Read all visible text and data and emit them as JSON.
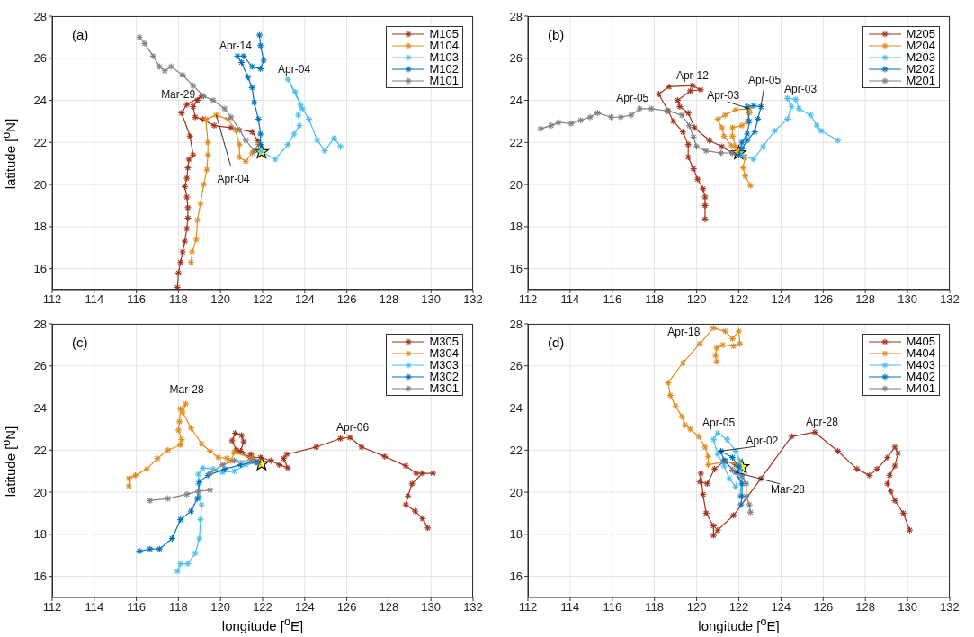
{
  "chart_data": [
    {
      "type": "line",
      "marker": "cross",
      "grid": true,
      "legend": "top right",
      "ylabel": "latitude [$^{o}$N]",
      "xlim": [
        112,
        132
      ],
      "ylim": [
        15,
        28
      ],
      "xticks": [
        112,
        114,
        116,
        118,
        120,
        122,
        124,
        126,
        128,
        130,
        132
      ],
      "yticks": [
        16,
        18,
        20,
        22,
        24,
        26,
        28
      ],
      "annotations": [
        "(a)",
        {
          "text": "Apr-14",
          "x": 120.8,
          "y": 26.1
        },
        {
          "text": "Apr-04",
          "x": 123.2,
          "y": 25.0
        },
        {
          "text": "Mar-29",
          "x": 119.1,
          "y": 24.2
        },
        {
          "text": "Apr-04",
          "x": 119.8,
          "y": 23.3
        }
      ],
      "series": [
        {
          "name": "M105",
          "color": "#a2331d",
          "x": [
            121.78,
            121.5,
            120.5,
            119.7,
            119.15,
            118.8,
            118.7,
            118.9,
            119.1,
            118.4,
            118.15,
            118.55,
            118.7,
            118.5,
            118.45,
            118.4,
            118.3,
            118.4,
            118.45,
            118.45,
            118.4,
            118.3,
            118.2,
            118.1,
            118.0,
            117.95
          ],
          "values": [
            22.07,
            22.5,
            22.7,
            22.8,
            23.1,
            23.2,
            23.7,
            24.0,
            24.2,
            23.8,
            23.4,
            22.3,
            21.4,
            21.2,
            20.8,
            20.3,
            19.9,
            19.4,
            18.9,
            18.4,
            17.9,
            17.3,
            16.8,
            16.3,
            15.8,
            15.1
          ]
        },
        {
          "name": "M104",
          "color": "#e08a1e",
          "x": [
            121.8,
            121.5,
            121.2,
            120.9,
            120.9,
            120.7,
            120.35,
            119.8,
            119.3,
            119.4,
            119.4,
            119.35,
            119.2,
            119.05,
            118.9,
            118.85,
            118.65,
            118.6
          ],
          "values": [
            21.9,
            21.5,
            21.1,
            21.3,
            21.9,
            22.6,
            23.1,
            23.3,
            23.1,
            22.0,
            21.4,
            20.7,
            20.0,
            19.1,
            18.3,
            17.4,
            16.8,
            16.3
          ]
        },
        {
          "name": "M103",
          "color": "#4dbeee",
          "x": [
            121.9,
            122.6,
            123.2,
            123.5,
            123.75,
            123.7,
            123.8,
            123.55,
            123.2,
            123.9,
            124.2,
            124.6,
            124.95,
            125.4,
            125.7
          ],
          "values": [
            21.6,
            21.2,
            21.9,
            22.4,
            22.8,
            23.3,
            23.8,
            24.4,
            25.0,
            23.6,
            23.1,
            22.1,
            21.6,
            22.2,
            21.8
          ]
        },
        {
          "name": "M102",
          "color": "#0072bd",
          "x": [
            121.9,
            121.9,
            121.8,
            121.6,
            121.5,
            121.3,
            121.0,
            120.8,
            121.1,
            121.5,
            121.9,
            122.05,
            121.9,
            121.85
          ],
          "values": [
            21.9,
            22.4,
            23.1,
            23.9,
            24.6,
            25.1,
            25.8,
            26.1,
            26.1,
            25.6,
            25.5,
            25.9,
            26.6,
            27.1
          ]
        },
        {
          "name": "M101",
          "color": "#7f7f7f",
          "x": [
            121.6,
            121.2,
            120.9,
            120.5,
            120.2,
            119.65,
            119.2,
            118.7,
            118.2,
            117.65,
            117.35,
            117.1,
            116.8,
            116.4,
            116.15
          ],
          "values": [
            21.6,
            22.1,
            22.6,
            23.2,
            23.6,
            24.0,
            24.2,
            24.7,
            25.2,
            25.6,
            25.4,
            25.6,
            26.1,
            26.7,
            27.0
          ]
        },
        {
          "type": "scatter",
          "marker": "star",
          "color": "#ffff00",
          "x": [
            121.95
          ],
          "values": [
            21.55
          ]
        }
      ]
    },
    {
      "type": "line",
      "marker": "cross",
      "grid": true,
      "legend": "top right",
      "xlim": [
        112,
        132
      ],
      "ylim": [
        15,
        28
      ],
      "xticks": [
        112,
        114,
        116,
        118,
        120,
        122,
        124,
        126,
        128,
        130,
        132
      ],
      "yticks": [
        16,
        18,
        20,
        22,
        24,
        26,
        28
      ],
      "annotations": [
        "(b)",
        {
          "text": "Apr-12",
          "x": 119.8,
          "y": 24.7
        },
        {
          "text": "Apr-05",
          "x": 117.3,
          "y": 23.6
        },
        {
          "text": "Apr-03",
          "x": 122.5,
          "y": 23.6
        },
        {
          "text": "Apr-05",
          "x": 123.05,
          "y": 23.7
        },
        {
          "text": "Apr-03",
          "x": 124.5,
          "y": 24.1
        }
      ],
      "series": [
        {
          "name": "M205",
          "color": "#a2331d",
          "x": [
            120.4,
            120.4,
            120.4,
            120.3,
            120.05,
            119.85,
            119.6,
            119.6,
            119.35,
            118.9,
            118.65,
            118.2,
            118.7,
            119.8,
            120.2,
            119.7,
            119.1,
            119.2,
            119.6,
            119.9,
            120.6,
            121.2,
            121.7
          ],
          "values": [
            18.35,
            19.0,
            19.4,
            19.8,
            20.25,
            20.75,
            21.3,
            21.9,
            22.5,
            23.0,
            23.5,
            24.3,
            24.65,
            24.7,
            24.5,
            24.45,
            24.0,
            23.7,
            23.4,
            22.7,
            22.1,
            21.8,
            21.5
          ]
        },
        {
          "name": "M204",
          "color": "#e08a1e",
          "x": [
            122.55,
            122.3,
            122.2,
            122.3,
            122.0,
            121.65,
            121.3,
            121.2,
            121.0,
            121.35,
            121.85,
            122.5,
            122.5,
            122.4,
            122.15,
            121.7,
            121.7,
            121.85
          ],
          "values": [
            19.95,
            20.4,
            20.8,
            21.3,
            21.5,
            21.85,
            22.3,
            22.7,
            23.1,
            23.3,
            23.55,
            23.6,
            23.4,
            23.0,
            22.8,
            22.7,
            22.3,
            21.8
          ]
        },
        {
          "name": "M203",
          "color": "#4dbeee",
          "x": [
            122.15,
            122.7,
            123.15,
            123.7,
            124.3,
            124.5,
            124.3,
            124.7,
            124.85,
            125.4,
            125.7,
            125.9,
            126.7
          ],
          "values": [
            21.4,
            21.2,
            21.8,
            22.55,
            23.1,
            23.7,
            24.1,
            24.05,
            23.6,
            23.3,
            22.8,
            22.55,
            22.1
          ]
        },
        {
          "name": "M202",
          "color": "#0072bd",
          "x": [
            122.0,
            122.15,
            122.4,
            122.5,
            122.4,
            122.7,
            123.05,
            122.9,
            122.75,
            122.4,
            122.15
          ],
          "values": [
            21.4,
            22.0,
            22.4,
            23.0,
            23.7,
            23.75,
            23.7,
            23.1,
            22.5,
            22.1,
            21.7
          ]
        },
        {
          "name": "M201",
          "color": "#7f7f7f",
          "x": [
            121.7,
            121.15,
            120.45,
            120.0,
            119.85,
            119.65,
            119.3,
            118.6,
            117.85,
            117.3,
            116.9,
            116.4,
            115.95,
            115.3,
            114.95,
            114.5,
            114.05,
            113.45,
            113.1,
            112.6
          ],
          "values": [
            21.5,
            21.5,
            21.6,
            21.8,
            22.25,
            22.8,
            23.3,
            23.5,
            23.6,
            23.6,
            23.3,
            23.2,
            23.2,
            23.4,
            23.2,
            23.05,
            22.9,
            22.95,
            22.8,
            22.65
          ]
        },
        {
          "type": "scatter",
          "marker": "star",
          "color": "#ffff00",
          "x": [
            122.0
          ],
          "values": [
            21.5
          ]
        }
      ]
    },
    {
      "type": "line",
      "marker": "cross",
      "grid": true,
      "legend": "top right",
      "xlabel": "longitude [$^{o}$E]",
      "ylabel": "latitude [$^{o}$N]",
      "xlim": [
        112,
        132
      ],
      "ylim": [
        15,
        28
      ],
      "xticks": [
        112,
        114,
        116,
        118,
        120,
        122,
        124,
        126,
        128,
        130,
        132
      ],
      "yticks": [
        16,
        18,
        20,
        22,
        24,
        26,
        28
      ],
      "annotations": [
        "(c)",
        {
          "text": "Mar-28",
          "x": 118.35,
          "y": 24.2
        },
        {
          "text": "Apr-06",
          "x": 126.15,
          "y": 22.6
        }
      ],
      "series": [
        {
          "name": "M305",
          "color": "#a2331d",
          "x": [
            121.8,
            121.45,
            120.95,
            121.1,
            121.0,
            120.7,
            120.55,
            120.75,
            121.4,
            121.9,
            122.4,
            122.8,
            123.2,
            123.0,
            123.15,
            124.55,
            125.7,
            126.15,
            126.7,
            127.8,
            128.8,
            129.3,
            130.1,
            129.6,
            129.1,
            128.9,
            128.8,
            129.25,
            129.6,
            129.85
          ],
          "values": [
            21.4,
            21.8,
            21.95,
            22.4,
            22.7,
            22.8,
            22.45,
            22.0,
            21.65,
            21.65,
            21.5,
            21.3,
            21.15,
            21.6,
            21.8,
            22.15,
            22.55,
            22.6,
            22.15,
            21.7,
            21.25,
            20.9,
            20.9,
            20.9,
            20.4,
            19.8,
            19.4,
            19.1,
            18.75,
            18.3
          ]
        },
        {
          "name": "M304",
          "color": "#e08a1e",
          "x": [
            121.5,
            120.65,
            120.5,
            120.3,
            119.9,
            119.5,
            119.1,
            118.6,
            118.2,
            118.35,
            118.1,
            118.05,
            118.0,
            118.15,
            118.1,
            117.5,
            117.0,
            116.5,
            115.95,
            115.65,
            115.65
          ],
          "values": [
            21.6,
            21.9,
            21.5,
            21.6,
            21.65,
            21.95,
            22.3,
            23.05,
            23.8,
            24.2,
            23.95,
            23.35,
            22.95,
            22.5,
            22.25,
            22.0,
            21.6,
            21.1,
            20.8,
            20.65,
            20.3
          ]
        },
        {
          "name": "M303",
          "color": "#4dbeee",
          "x": [
            121.7,
            121.2,
            120.65,
            120.1,
            119.65,
            119.15,
            118.95,
            118.95,
            119.0,
            119.1,
            119.05,
            119.0,
            118.8,
            118.45,
            118.1,
            117.95
          ],
          "values": [
            21.4,
            21.3,
            21.0,
            20.95,
            21.1,
            21.15,
            20.85,
            20.4,
            19.8,
            19.4,
            18.7,
            17.8,
            17.1,
            16.6,
            16.6,
            16.25
          ]
        },
        {
          "name": "M302",
          "color": "#0072bd",
          "x": [
            121.7,
            120.95,
            120.2,
            119.4,
            119.0,
            118.9,
            118.6,
            118.1,
            117.7,
            117.1,
            116.65,
            116.15
          ],
          "values": [
            21.45,
            21.3,
            21.1,
            20.8,
            20.5,
            19.7,
            19.1,
            18.7,
            17.8,
            17.3,
            17.3,
            17.2
          ]
        },
        {
          "name": "M301",
          "color": "#7f7f7f",
          "x": [
            121.5,
            120.65,
            120.1,
            119.5,
            119.5,
            118.95,
            118.4,
            117.5,
            116.65
          ],
          "values": [
            21.5,
            21.5,
            21.3,
            20.9,
            20.1,
            20.05,
            19.9,
            19.7,
            19.6
          ]
        },
        {
          "type": "scatter",
          "marker": "star",
          "color": "#ffff00",
          "x": [
            121.95
          ],
          "values": [
            21.35
          ]
        }
      ]
    },
    {
      "type": "line",
      "marker": "cross",
      "grid": true,
      "legend": "top right",
      "xlabel": "longitude [$^{o}$E]",
      "xlim": [
        112,
        132
      ],
      "ylim": [
        15,
        28
      ],
      "xticks": [
        112,
        114,
        116,
        118,
        120,
        122,
        124,
        126,
        128,
        130,
        132
      ],
      "yticks": [
        16,
        18,
        20,
        22,
        24,
        26,
        28
      ],
      "annotations": [
        "(d)",
        {
          "text": "Apr-18",
          "x": 120.8,
          "y": 27.8
        },
        {
          "text": "Apr-05",
          "x": 121.0,
          "y": 22.8
        },
        {
          "text": "Apr-02",
          "x": 121.1,
          "y": 21.95
        },
        {
          "text": "Apr-28",
          "x": 125.6,
          "y": 22.85
        },
        {
          "text": "Mar-28",
          "x": 121.85,
          "y": 20.95
        }
      ],
      "series": [
        {
          "name": "M405",
          "color": "#a2331d",
          "x": [
            121.85,
            121.35,
            120.85,
            120.5,
            120.15,
            120.2,
            120.3,
            120.45,
            120.8,
            120.8,
            121.0,
            121.75,
            123.05,
            124.5,
            125.6,
            126.7,
            127.6,
            128.2,
            128.55,
            129.05,
            129.4,
            129.55,
            129.4,
            129.15,
            129.05,
            129.2,
            129.4,
            129.8,
            130.1
          ],
          "values": [
            21.3,
            21.5,
            21.1,
            20.4,
            20.5,
            20.9,
            19.9,
            19.0,
            18.4,
            17.95,
            18.2,
            18.9,
            20.65,
            22.65,
            22.85,
            21.95,
            21.1,
            20.8,
            21.1,
            21.65,
            22.15,
            21.85,
            21.25,
            20.8,
            20.4,
            20.05,
            19.6,
            19.0,
            18.2
          ]
        },
        {
          "name": "M404",
          "color": "#e08a1e",
          "x": [
            122.0,
            121.35,
            120.55,
            120.55,
            120.4,
            120.1,
            119.7,
            119.45,
            119.3,
            119.0,
            118.75,
            118.65,
            119.35,
            120.15,
            120.8,
            121.35,
            121.7,
            122.0,
            122.05,
            121.75,
            121.25,
            120.95,
            120.9,
            120.95
          ],
          "values": [
            21.3,
            21.45,
            21.3,
            21.7,
            22.15,
            22.65,
            23.0,
            23.2,
            23.6,
            24.1,
            24.6,
            25.2,
            26.15,
            27.05,
            27.8,
            27.65,
            27.3,
            27.65,
            27.05,
            26.95,
            27.0,
            26.85,
            26.5,
            26.2
          ]
        },
        {
          "name": "M403",
          "color": "#4dbeee",
          "x": [
            122.05,
            121.85,
            121.55,
            121.3,
            121.0,
            120.8,
            121.0,
            121.45,
            121.85,
            122.05,
            122.15,
            122.05
          ],
          "values": [
            21.1,
            20.25,
            20.65,
            21.25,
            21.8,
            22.5,
            22.8,
            22.5,
            21.95,
            21.5,
            20.65,
            19.8
          ]
        },
        {
          "name": "M402",
          "color": "#0072bd",
          "x": [
            122.0,
            121.7,
            121.15,
            121.3,
            121.85,
            122.15,
            122.15,
            122.1
          ],
          "values": [
            21.2,
            21.65,
            21.95,
            21.5,
            20.95,
            20.4,
            19.8,
            19.4
          ]
        },
        {
          "name": "M401",
          "color": "#7f7f7f",
          "x": [
            121.7,
            122.15,
            122.35,
            122.35,
            122.5,
            122.55
          ],
          "values": [
            21.05,
            20.8,
            20.4,
            19.8,
            19.4,
            19.05
          ]
        },
        {
          "type": "scatter",
          "marker": "star",
          "color": "#ffff00",
          "x": [
            122.15
          ],
          "values": [
            21.2
          ]
        }
      ]
    }
  ]
}
